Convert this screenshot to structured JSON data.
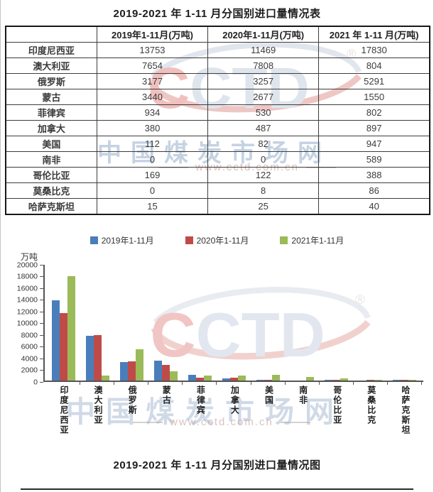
{
  "table": {
    "title": "2019-2021 年 1-11 月分国别进口量情况表",
    "columns": [
      "",
      "2019年1-11月(万吨)",
      "2020年1-11月(万吨)",
      "2021 年 1-11 月(万吨)"
    ],
    "rows": [
      {
        "country": "印度尼西亚",
        "values": [
          "13753",
          "11469",
          "17830"
        ]
      },
      {
        "country": "澳大利亚",
        "values": [
          "7654",
          "7808",
          "804"
        ]
      },
      {
        "country": "俄罗斯",
        "values": [
          "3177",
          "3257",
          "5291"
        ]
      },
      {
        "country": "蒙古",
        "values": [
          "3440",
          "2677",
          "1550"
        ]
      },
      {
        "country": "菲律宾",
        "values": [
          "934",
          "530",
          "802"
        ]
      },
      {
        "country": "加拿大",
        "values": [
          "380",
          "487",
          "897"
        ]
      },
      {
        "country": "美国",
        "values": [
          "112",
          "82",
          "947"
        ]
      },
      {
        "country": "南非",
        "values": [
          "0",
          "0",
          "589"
        ]
      },
      {
        "country": "哥伦比亚",
        "values": [
          "169",
          "122",
          "388"
        ]
      },
      {
        "country": "莫桑比克",
        "values": [
          "0",
          "8",
          "86"
        ]
      },
      {
        "country": "哈萨克斯坦",
        "values": [
          "15",
          "25",
          "40"
        ]
      }
    ]
  },
  "chart_data": {
    "type": "bar",
    "title": "2019-2021 年 1-11 月分国别进口量情况图",
    "xlabel": "",
    "ylabel": "万吨",
    "ylim": [
      0,
      20000
    ],
    "ytick_step": 2000,
    "grid": false,
    "legend_position": "top",
    "categories": [
      "印度尼西亚",
      "澳大利亚",
      "俄罗斯",
      "蒙古",
      "菲律宾",
      "加拿大",
      "美国",
      "南非",
      "哥伦比亚",
      "莫桑比克",
      "哈萨克斯坦"
    ],
    "series": [
      {
        "name": "2019年1-11月",
        "color": "#4a7ebb",
        "values": [
          13753,
          7654,
          3177,
          3440,
          934,
          380,
          112,
          0,
          169,
          0,
          15
        ]
      },
      {
        "name": "2020年1-11月",
        "color": "#bf4b48",
        "values": [
          11469,
          7808,
          3257,
          2677,
          530,
          487,
          82,
          0,
          122,
          8,
          25
        ]
      },
      {
        "name": "2021年1-11月",
        "color": "#9bba58",
        "values": [
          17830,
          804,
          5291,
          1550,
          802,
          897,
          947,
          589,
          388,
          86,
          40
        ]
      }
    ]
  },
  "watermark": {
    "logo_first_letter": "C",
    "logo_rest_letters": "CTD",
    "registered_mark": "®",
    "site_name": "中国煤炭市场网",
    "site_url": "www.cctd.com.cn"
  },
  "colors": {
    "series_2019": "#4a7ebb",
    "series_2020": "#bf4b48",
    "series_2021": "#9bba58",
    "axis": "#555555",
    "watermark_blue": "#a3b7d1",
    "watermark_red": "#d97c74"
  }
}
